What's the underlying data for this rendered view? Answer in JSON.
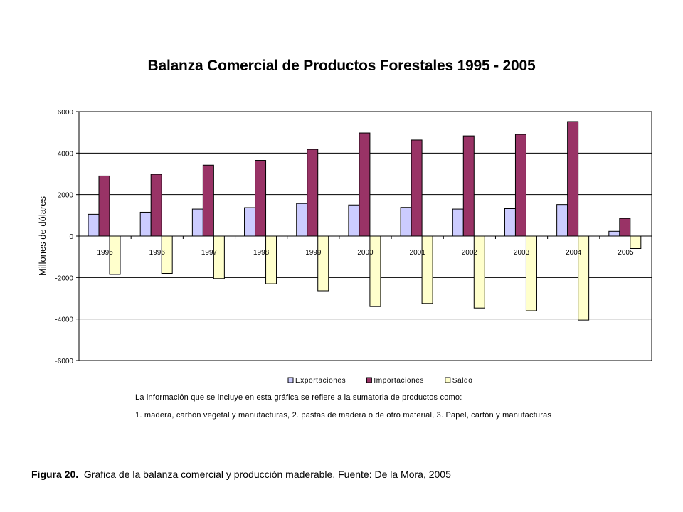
{
  "chart_data": {
    "type": "bar",
    "title": "Balanza Comercial de Productos Forestales 1995 - 2005",
    "ylabel": "Millones de dólares",
    "xlabel": "",
    "categories": [
      "1995",
      "1996",
      "1997",
      "1998",
      "1999",
      "2000",
      "2001",
      "2002",
      "2003",
      "2004",
      "2005"
    ],
    "series": [
      {
        "name": "Exportaciones",
        "color": "#ccccff",
        "values": [
          1050,
          1150,
          1300,
          1370,
          1570,
          1500,
          1380,
          1300,
          1320,
          1520,
          230
        ]
      },
      {
        "name": "Importaciones",
        "color": "#993366",
        "values": [
          2900,
          2980,
          3420,
          3650,
          4180,
          4970,
          4630,
          4830,
          4900,
          5520,
          850
        ]
      },
      {
        "name": "Saldo",
        "color": "#ffffcc",
        "values": [
          -1850,
          -1800,
          -2050,
          -2300,
          -2640,
          -3400,
          -3250,
          -3470,
          -3600,
          -4050,
          -600
        ]
      }
    ],
    "ylim": [
      -6000,
      6000
    ],
    "yticks": [
      6000,
      4000,
      2000,
      0,
      -2000,
      -4000,
      -6000
    ],
    "grid": true,
    "legend": "bottom"
  },
  "note": {
    "line1": "La información que se incluye en esta gráfica se refiere a la sumatoria de productos como:",
    "line2": "1. madera, carbón vegetal y manufacturas, 2. pastas de madera o de otro material, 3. Papel, cartón y manufacturas"
  },
  "caption": {
    "label": "Figura 20.",
    "text": "Grafica de la balanza comercial y producción maderable. Fuente: De la Mora, 2005"
  }
}
